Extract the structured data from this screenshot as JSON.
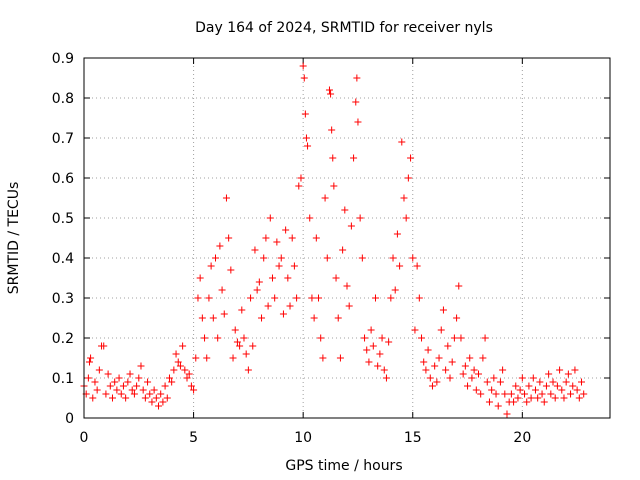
{
  "chart_data": {
    "type": "scatter",
    "title": "Day 164 of 2024, SRMTID for receiver nyls",
    "xlabel": "GPS time / hours",
    "ylabel": "SRMTID / TECUs",
    "xlim": [
      0,
      24
    ],
    "ylim": [
      0,
      0.9
    ],
    "xticks": [
      0,
      5,
      10,
      15,
      20
    ],
    "xtick_labels": [
      "0",
      "5",
      "10",
      "15",
      "20"
    ],
    "yticks": [
      0,
      0.1,
      0.2,
      0.3,
      0.4,
      0.5,
      0.6,
      0.7,
      0.8,
      0.9
    ],
    "ytick_labels": [
      "0",
      "0.1",
      "0.2",
      "0.3",
      "0.4",
      "0.5",
      "0.6",
      "0.7",
      "0.8",
      "0.9"
    ],
    "grid": true,
    "marker": "+",
    "series_color": "#ff0000",
    "series": [
      {
        "name": "SRMTID",
        "points": [
          [
            0.0,
            0.08
          ],
          [
            0.1,
            0.06
          ],
          [
            0.2,
            0.1
          ],
          [
            0.25,
            0.14
          ],
          [
            0.3,
            0.15
          ],
          [
            0.4,
            0.05
          ],
          [
            0.5,
            0.09
          ],
          [
            0.6,
            0.07
          ],
          [
            0.7,
            0.12
          ],
          [
            0.8,
            0.18
          ],
          [
            0.9,
            0.18
          ],
          [
            1.0,
            0.06
          ],
          [
            1.1,
            0.11
          ],
          [
            1.2,
            0.08
          ],
          [
            1.3,
            0.05
          ],
          [
            1.4,
            0.09
          ],
          [
            1.5,
            0.07
          ],
          [
            1.6,
            0.1
          ],
          [
            1.7,
            0.06
          ],
          [
            1.8,
            0.08
          ],
          [
            1.9,
            0.05
          ],
          [
            2.0,
            0.09
          ],
          [
            2.1,
            0.11
          ],
          [
            2.2,
            0.07
          ],
          [
            2.3,
            0.06
          ],
          [
            2.4,
            0.08
          ],
          [
            2.5,
            0.1
          ],
          [
            2.6,
            0.13
          ],
          [
            2.7,
            0.07
          ],
          [
            2.8,
            0.05
          ],
          [
            2.9,
            0.09
          ],
          [
            3.0,
            0.06
          ],
          [
            3.1,
            0.04
          ],
          [
            3.2,
            0.07
          ],
          [
            3.3,
            0.05
          ],
          [
            3.4,
            0.03
          ],
          [
            3.5,
            0.06
          ],
          [
            3.6,
            0.04
          ],
          [
            3.7,
            0.08
          ],
          [
            3.8,
            0.05
          ],
          [
            3.9,
            0.1
          ],
          [
            4.0,
            0.09
          ],
          [
            4.1,
            0.12
          ],
          [
            4.2,
            0.16
          ],
          [
            4.3,
            0.14
          ],
          [
            4.4,
            0.13
          ],
          [
            4.5,
            0.18
          ],
          [
            4.6,
            0.12
          ],
          [
            4.7,
            0.1
          ],
          [
            4.8,
            0.11
          ],
          [
            4.9,
            0.08
          ],
          [
            5.0,
            0.07
          ],
          [
            5.1,
            0.15
          ],
          [
            5.2,
            0.3
          ],
          [
            5.3,
            0.35
          ],
          [
            5.4,
            0.25
          ],
          [
            5.5,
            0.2
          ],
          [
            5.6,
            0.15
          ],
          [
            5.7,
            0.3
          ],
          [
            5.8,
            0.38
          ],
          [
            5.9,
            0.25
          ],
          [
            6.0,
            0.4
          ],
          [
            6.1,
            0.2
          ],
          [
            6.2,
            0.43
          ],
          [
            6.3,
            0.32
          ],
          [
            6.4,
            0.26
          ],
          [
            6.5,
            0.55
          ],
          [
            6.6,
            0.45
          ],
          [
            6.7,
            0.37
          ],
          [
            6.8,
            0.15
          ],
          [
            6.9,
            0.22
          ],
          [
            7.0,
            0.19
          ],
          [
            7.1,
            0.18
          ],
          [
            7.2,
            0.27
          ],
          [
            7.3,
            0.2
          ],
          [
            7.4,
            0.16
          ],
          [
            7.5,
            0.12
          ],
          [
            7.6,
            0.3
          ],
          [
            7.7,
            0.18
          ],
          [
            7.8,
            0.42
          ],
          [
            7.9,
            0.32
          ],
          [
            8.0,
            0.34
          ],
          [
            8.1,
            0.25
          ],
          [
            8.2,
            0.4
          ],
          [
            8.3,
            0.45
          ],
          [
            8.4,
            0.28
          ],
          [
            8.5,
            0.5
          ],
          [
            8.6,
            0.35
          ],
          [
            8.7,
            0.3
          ],
          [
            8.8,
            0.44
          ],
          [
            8.9,
            0.38
          ],
          [
            9.0,
            0.4
          ],
          [
            9.1,
            0.26
          ],
          [
            9.2,
            0.47
          ],
          [
            9.3,
            0.35
          ],
          [
            9.4,
            0.28
          ],
          [
            9.5,
            0.45
          ],
          [
            9.6,
            0.38
          ],
          [
            9.7,
            0.3
          ],
          [
            9.8,
            0.58
          ],
          [
            9.9,
            0.6
          ],
          [
            10.0,
            0.88
          ],
          [
            10.05,
            0.85
          ],
          [
            10.1,
            0.76
          ],
          [
            10.15,
            0.7
          ],
          [
            10.2,
            0.68
          ],
          [
            10.3,
            0.5
          ],
          [
            10.4,
            0.3
          ],
          [
            10.5,
            0.25
          ],
          [
            10.6,
            0.45
          ],
          [
            10.7,
            0.3
          ],
          [
            10.8,
            0.2
          ],
          [
            10.9,
            0.15
          ],
          [
            11.0,
            0.55
          ],
          [
            11.1,
            0.4
          ],
          [
            11.2,
            0.82
          ],
          [
            11.25,
            0.81
          ],
          [
            11.3,
            0.72
          ],
          [
            11.35,
            0.65
          ],
          [
            11.4,
            0.58
          ],
          [
            11.5,
            0.35
          ],
          [
            11.6,
            0.25
          ],
          [
            11.7,
            0.15
          ],
          [
            11.8,
            0.42
          ],
          [
            11.9,
            0.52
          ],
          [
            12.0,
            0.33
          ],
          [
            12.1,
            0.28
          ],
          [
            12.2,
            0.48
          ],
          [
            12.3,
            0.65
          ],
          [
            12.4,
            0.79
          ],
          [
            12.45,
            0.85
          ],
          [
            12.5,
            0.74
          ],
          [
            12.6,
            0.5
          ],
          [
            12.7,
            0.4
          ],
          [
            12.8,
            0.2
          ],
          [
            12.9,
            0.17
          ],
          [
            13.0,
            0.14
          ],
          [
            13.1,
            0.22
          ],
          [
            13.2,
            0.18
          ],
          [
            13.3,
            0.3
          ],
          [
            13.4,
            0.13
          ],
          [
            13.5,
            0.16
          ],
          [
            13.6,
            0.2
          ],
          [
            13.7,
            0.12
          ],
          [
            13.8,
            0.1
          ],
          [
            13.9,
            0.19
          ],
          [
            14.0,
            0.3
          ],
          [
            14.1,
            0.4
          ],
          [
            14.2,
            0.32
          ],
          [
            14.3,
            0.46
          ],
          [
            14.4,
            0.38
          ],
          [
            14.5,
            0.69
          ],
          [
            14.6,
            0.55
          ],
          [
            14.7,
            0.5
          ],
          [
            14.8,
            0.6
          ],
          [
            14.9,
            0.65
          ],
          [
            15.0,
            0.4
          ],
          [
            15.1,
            0.22
          ],
          [
            15.2,
            0.38
          ],
          [
            15.3,
            0.3
          ],
          [
            15.4,
            0.2
          ],
          [
            15.5,
            0.14
          ],
          [
            15.6,
            0.12
          ],
          [
            15.7,
            0.17
          ],
          [
            15.8,
            0.1
          ],
          [
            15.9,
            0.08
          ],
          [
            16.0,
            0.13
          ],
          [
            16.1,
            0.09
          ],
          [
            16.2,
            0.15
          ],
          [
            16.3,
            0.22
          ],
          [
            16.4,
            0.27
          ],
          [
            16.5,
            0.12
          ],
          [
            16.6,
            0.18
          ],
          [
            16.7,
            0.1
          ],
          [
            16.8,
            0.14
          ],
          [
            16.9,
            0.2
          ],
          [
            17.0,
            0.25
          ],
          [
            17.1,
            0.33
          ],
          [
            17.2,
            0.2
          ],
          [
            17.3,
            0.11
          ],
          [
            17.4,
            0.13
          ],
          [
            17.5,
            0.08
          ],
          [
            17.6,
            0.15
          ],
          [
            17.7,
            0.1
          ],
          [
            17.8,
            0.12
          ],
          [
            17.9,
            0.07
          ],
          [
            18.0,
            0.11
          ],
          [
            18.1,
            0.06
          ],
          [
            18.2,
            0.15
          ],
          [
            18.3,
            0.2
          ],
          [
            18.4,
            0.09
          ],
          [
            18.5,
            0.04
          ],
          [
            18.6,
            0.07
          ],
          [
            18.7,
            0.1
          ],
          [
            18.8,
            0.06
          ],
          [
            18.9,
            0.03
          ],
          [
            19.0,
            0.09
          ],
          [
            19.1,
            0.12
          ],
          [
            19.2,
            0.06
          ],
          [
            19.3,
            0.01
          ],
          [
            19.4,
            0.04
          ],
          [
            19.5,
            0.06
          ],
          [
            19.6,
            0.04
          ],
          [
            19.7,
            0.08
          ],
          [
            19.8,
            0.05
          ],
          [
            19.9,
            0.07
          ],
          [
            20.0,
            0.1
          ],
          [
            20.1,
            0.06
          ],
          [
            20.2,
            0.04
          ],
          [
            20.3,
            0.08
          ],
          [
            20.4,
            0.05
          ],
          [
            20.5,
            0.1
          ],
          [
            20.6,
            0.07
          ],
          [
            20.7,
            0.05
          ],
          [
            20.8,
            0.09
          ],
          [
            20.9,
            0.06
          ],
          [
            21.0,
            0.04
          ],
          [
            21.1,
            0.08
          ],
          [
            21.2,
            0.11
          ],
          [
            21.3,
            0.06
          ],
          [
            21.4,
            0.09
          ],
          [
            21.5,
            0.05
          ],
          [
            21.6,
            0.08
          ],
          [
            21.7,
            0.12
          ],
          [
            21.8,
            0.07
          ],
          [
            21.9,
            0.05
          ],
          [
            22.0,
            0.09
          ],
          [
            22.1,
            0.11
          ],
          [
            22.2,
            0.06
          ],
          [
            22.3,
            0.08
          ],
          [
            22.4,
            0.12
          ],
          [
            22.5,
            0.07
          ],
          [
            22.6,
            0.05
          ],
          [
            22.7,
            0.09
          ],
          [
            22.8,
            0.06
          ]
        ]
      }
    ]
  }
}
